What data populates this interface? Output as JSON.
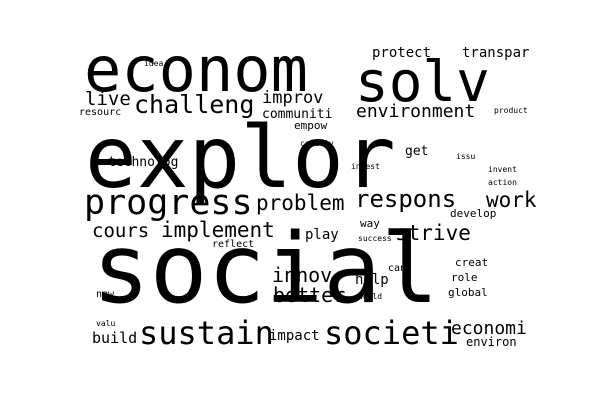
{
  "word_cloud": {
    "colors": {
      "background": "#ffffff",
      "text": "#000000"
    },
    "words": {
      "explor": "explor",
      "social": "social",
      "econom": "econom",
      "solv": "solv",
      "progress": "progress",
      "sustain": "sustain",
      "societi": "societi",
      "challeng": "challeng",
      "respons": "respons",
      "environment": "environment",
      "problem": "problem",
      "work": "work",
      "implement": "implement",
      "strive": "strive",
      "innov": "innov",
      "better": "better",
      "live": "live",
      "improv": "improv",
      "cours": "cours",
      "economi": "economi",
      "protect": "protect",
      "transpar": "transpar",
      "communiti": "communiti",
      "impact": "impact",
      "build": "build",
      "technolog": "technolog",
      "empow": "empow",
      "get": "get",
      "play": "play",
      "help": "help",
      "environ": "environ",
      "global": "global",
      "role": "role",
      "creat": "creat",
      "develop": "develop",
      "way": "way",
      "reflect": "reflect",
      "new": "new",
      "can": "can",
      "idea": "idea",
      "resourc": "resourc",
      "product": "product",
      "creativ": "creativ",
      "invest": "invest",
      "issu": "issu",
      "invent": "invent",
      "action": "action",
      "success": "success",
      "world": "world",
      "valu": "valu"
    }
  }
}
